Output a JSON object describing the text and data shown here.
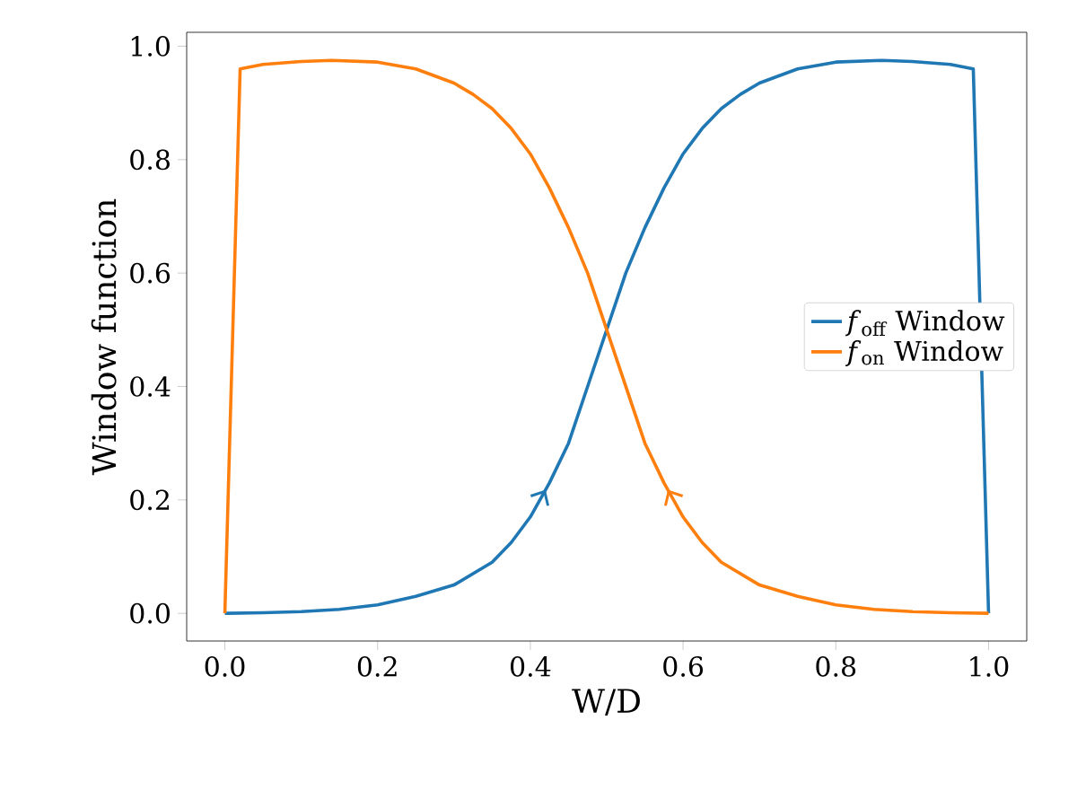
{
  "chart_data": {
    "type": "line",
    "xlabel": "W/D",
    "ylabel": "Window function",
    "xlim": [
      -0.05,
      1.05
    ],
    "ylim": [
      -0.0488,
      1.0245
    ],
    "xticks": [
      {
        "value": 0,
        "label": "0.0"
      },
      {
        "value": 0.2,
        "label": "0.2"
      },
      {
        "value": 0.4,
        "label": "0.4"
      },
      {
        "value": 0.6,
        "label": "0.6"
      },
      {
        "value": 0.8,
        "label": "0.8"
      },
      {
        "value": 1,
        "label": "1.0"
      }
    ],
    "yticks": [
      {
        "value": 0,
        "label": "0.0"
      },
      {
        "value": 0.2,
        "label": "0.2"
      },
      {
        "value": 0.4,
        "label": "0.4"
      },
      {
        "value": 0.6,
        "label": "0.6"
      },
      {
        "value": 0.8,
        "label": "0.8"
      },
      {
        "value": 1,
        "label": "1.0"
      }
    ],
    "legend": "right",
    "grid": false,
    "marker": "none",
    "line_style": "solid",
    "series": [
      {
        "name": "*f*$_{off}$ Window",
        "color": "#1f77b4",
        "x": [
          0,
          0.05,
          0.1,
          0.15,
          0.2,
          0.25,
          0.3,
          0.35,
          0.375,
          0.4,
          0.425,
          0.45,
          0.475,
          0.5,
          0.525,
          0.55,
          0.575,
          0.6,
          0.625,
          0.65,
          0.675,
          0.7,
          0.75,
          0.8,
          0.86,
          0.9,
          0.95,
          0.98,
          1.0
        ],
        "values": [
          0,
          0.001,
          0.003,
          0.007,
          0.015,
          0.03,
          0.05,
          0.09,
          0.125,
          0.17,
          0.23,
          0.3,
          0.4,
          0.5,
          0.6,
          0.68,
          0.75,
          0.81,
          0.855,
          0.89,
          0.915,
          0.935,
          0.96,
          0.972,
          0.975,
          0.973,
          0.968,
          0.96,
          0
        ]
      },
      {
        "name": "*f*$_{on}$ Window",
        "color": "#ff7f0e",
        "x": [
          0,
          0.02,
          0.05,
          0.1,
          0.14,
          0.2,
          0.25,
          0.3,
          0.325,
          0.35,
          0.375,
          0.4,
          0.425,
          0.45,
          0.475,
          0.5,
          0.525,
          0.55,
          0.575,
          0.6,
          0.625,
          0.65,
          0.7,
          0.75,
          0.8,
          0.85,
          0.9,
          0.95,
          1.0
        ],
        "values": [
          0,
          0.96,
          0.968,
          0.973,
          0.975,
          0.972,
          0.96,
          0.935,
          0.915,
          0.89,
          0.855,
          0.81,
          0.75,
          0.68,
          0.6,
          0.5,
          0.4,
          0.3,
          0.23,
          0.17,
          0.125,
          0.09,
          0.05,
          0.03,
          0.015,
          0.007,
          0.003,
          0.001,
          0
        ]
      }
    ]
  }
}
